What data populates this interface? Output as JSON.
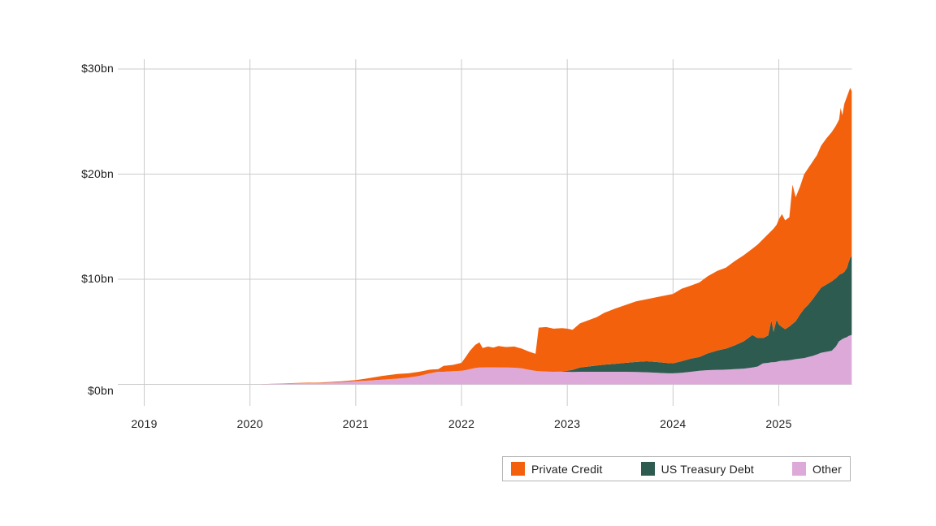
{
  "colors": {
    "background": "#ffffff",
    "grid": "#cbcbcb",
    "text": "#1f1f1f",
    "legend_border": "#b5b5b5"
  },
  "legend": {
    "position": "bottom-right"
  },
  "chart_data": {
    "type": "area",
    "stacked": true,
    "title": "",
    "xlabel": "",
    "ylabel": "",
    "grid": true,
    "ylim": [
      0,
      30
    ],
    "xlim": [
      2018.75,
      2025.72
    ],
    "y_ticks": [
      {
        "label": "$30bn",
        "value": 30
      },
      {
        "label": "$20bn",
        "value": 20
      },
      {
        "label": "$10bn",
        "value": 10
      },
      {
        "label": "$0bn",
        "value": 0
      }
    ],
    "x_ticks": [
      {
        "label": "2019",
        "year": 2019
      },
      {
        "label": "2020",
        "year": 2020
      },
      {
        "label": "2021",
        "year": 2021
      },
      {
        "label": "2022",
        "year": 2022
      },
      {
        "label": "2023",
        "year": 2023
      },
      {
        "label": "2024",
        "year": 2024
      },
      {
        "label": "2025",
        "year": 2025
      }
    ],
    "series": [
      {
        "name": "Private Credit",
        "color": "#F4610D",
        "stack_position": "top"
      },
      {
        "name": "US Treasury Debt",
        "color": "#2E5B50",
        "stack_position": "middle"
      },
      {
        "name": "Other",
        "color": "#DCA9D9",
        "stack_position": "bottom"
      }
    ],
    "points_format": [
      "year_decimal",
      "other_bn",
      "us_treasury_debt_bn",
      "total_bn"
    ],
    "points": [
      [
        2020.1,
        0.02,
        0.0,
        0.02
      ],
      [
        2020.25,
        0.05,
        0.0,
        0.07
      ],
      [
        2020.45,
        0.09,
        0.0,
        0.13
      ],
      [
        2020.65,
        0.13,
        0.0,
        0.18
      ],
      [
        2020.85,
        0.2,
        0.0,
        0.28
      ],
      [
        2021.0,
        0.3,
        0.0,
        0.4
      ],
      [
        2021.1,
        0.35,
        0.0,
        0.55
      ],
      [
        2021.25,
        0.45,
        0.0,
        0.8
      ],
      [
        2021.4,
        0.55,
        0.0,
        1.0
      ],
      [
        2021.5,
        0.65,
        0.0,
        1.05
      ],
      [
        2021.6,
        0.8,
        0.0,
        1.2
      ],
      [
        2021.7,
        1.05,
        0.0,
        1.4
      ],
      [
        2021.78,
        1.2,
        0.0,
        1.45
      ],
      [
        2021.83,
        1.2,
        0.0,
        1.75
      ],
      [
        2021.92,
        1.25,
        0.0,
        1.85
      ],
      [
        2022.0,
        1.3,
        0.0,
        2.05
      ],
      [
        2022.04,
        1.35,
        0.0,
        2.6
      ],
      [
        2022.08,
        1.45,
        0.0,
        3.2
      ],
      [
        2022.13,
        1.55,
        0.0,
        3.75
      ],
      [
        2022.17,
        1.6,
        0.0,
        4.0
      ],
      [
        2022.2,
        1.6,
        0.0,
        3.45
      ],
      [
        2022.25,
        1.62,
        0.0,
        3.6
      ],
      [
        2022.3,
        1.62,
        0.0,
        3.5
      ],
      [
        2022.35,
        1.6,
        0.0,
        3.65
      ],
      [
        2022.42,
        1.6,
        0.0,
        3.55
      ],
      [
        2022.5,
        1.58,
        0.0,
        3.6
      ],
      [
        2022.57,
        1.52,
        0.0,
        3.4
      ],
      [
        2022.63,
        1.4,
        0.0,
        3.15
      ],
      [
        2022.7,
        1.28,
        0.0,
        2.9
      ],
      [
        2022.73,
        1.25,
        0.0,
        5.4
      ],
      [
        2022.8,
        1.22,
        0.0,
        5.45
      ],
      [
        2022.87,
        1.2,
        0.0,
        5.3
      ],
      [
        2022.95,
        1.2,
        0.02,
        5.35
      ],
      [
        2023.0,
        1.2,
        0.1,
        5.3
      ],
      [
        2023.05,
        1.18,
        0.2,
        5.2
      ],
      [
        2023.12,
        1.2,
        0.4,
        5.8
      ],
      [
        2023.2,
        1.2,
        0.5,
        6.1
      ],
      [
        2023.28,
        1.2,
        0.6,
        6.4
      ],
      [
        2023.35,
        1.2,
        0.68,
        6.8
      ],
      [
        2023.45,
        1.2,
        0.75,
        7.2
      ],
      [
        2023.55,
        1.2,
        0.85,
        7.55
      ],
      [
        2023.65,
        1.18,
        0.95,
        7.9
      ],
      [
        2023.75,
        1.15,
        1.05,
        8.1
      ],
      [
        2023.85,
        1.1,
        1.02,
        8.3
      ],
      [
        2023.95,
        1.05,
        0.98,
        8.5
      ],
      [
        2024.0,
        1.05,
        0.95,
        8.6
      ],
      [
        2024.08,
        1.1,
        1.1,
        9.1
      ],
      [
        2024.17,
        1.2,
        1.25,
        9.4
      ],
      [
        2024.25,
        1.3,
        1.3,
        9.7
      ],
      [
        2024.33,
        1.35,
        1.6,
        10.3
      ],
      [
        2024.42,
        1.38,
        1.85,
        10.8
      ],
      [
        2024.5,
        1.4,
        2.0,
        11.1
      ],
      [
        2024.58,
        1.45,
        2.25,
        11.7
      ],
      [
        2024.67,
        1.5,
        2.6,
        12.3
      ],
      [
        2024.75,
        1.6,
        3.1,
        12.9
      ],
      [
        2024.8,
        1.7,
        2.7,
        13.3
      ],
      [
        2024.85,
        2.0,
        2.4,
        13.8
      ],
      [
        2024.9,
        2.05,
        2.6,
        14.3
      ],
      [
        2024.93,
        2.1,
        4.0,
        14.6
      ],
      [
        2024.95,
        2.1,
        2.9,
        14.8
      ],
      [
        2024.98,
        2.15,
        4.0,
        15.2
      ],
      [
        2025.0,
        2.2,
        3.5,
        15.7
      ],
      [
        2025.03,
        2.25,
        3.2,
        16.2
      ],
      [
        2025.06,
        2.25,
        3.0,
        15.6
      ],
      [
        2025.1,
        2.3,
        3.2,
        15.9
      ],
      [
        2025.13,
        2.35,
        3.4,
        19.0
      ],
      [
        2025.16,
        2.4,
        3.6,
        17.8
      ],
      [
        2025.2,
        2.45,
        4.2,
        18.8
      ],
      [
        2025.24,
        2.5,
        4.7,
        20.0
      ],
      [
        2025.28,
        2.6,
        5.0,
        20.6
      ],
      [
        2025.32,
        2.7,
        5.4,
        21.2
      ],
      [
        2025.36,
        2.85,
        5.8,
        21.8
      ],
      [
        2025.4,
        3.0,
        6.2,
        22.7
      ],
      [
        2025.45,
        3.1,
        6.4,
        23.4
      ],
      [
        2025.5,
        3.2,
        6.6,
        24.0
      ],
      [
        2025.54,
        3.6,
        6.5,
        24.6
      ],
      [
        2025.57,
        4.1,
        6.3,
        25.2
      ],
      [
        2025.585,
        4.2,
        6.3,
        26.3
      ],
      [
        2025.6,
        4.3,
        6.25,
        25.6
      ],
      [
        2025.62,
        4.4,
        6.3,
        26.7
      ],
      [
        2025.645,
        4.5,
        6.6,
        27.4
      ],
      [
        2025.66,
        4.6,
        7.0,
        27.8
      ],
      [
        2025.675,
        4.65,
        7.4,
        28.2
      ],
      [
        2025.69,
        4.7,
        7.5,
        27.9
      ]
    ]
  }
}
